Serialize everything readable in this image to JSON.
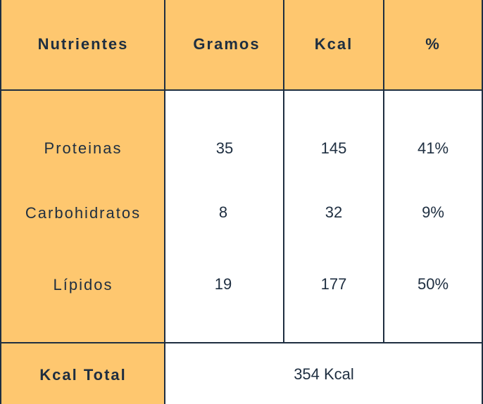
{
  "table": {
    "header": [
      "Nutrientes",
      "Gramos",
      "Kcal",
      "%"
    ],
    "rows": [
      [
        "Proteinas",
        "35",
        "145",
        "41%"
      ],
      [
        "Carbohidratos",
        "8",
        "32",
        "9%"
      ],
      [
        "Lípidos",
        "19",
        "177",
        "50%"
      ]
    ],
    "footer": {
      "label": "Kcal Total",
      "value": "354 Kcal"
    }
  }
}
